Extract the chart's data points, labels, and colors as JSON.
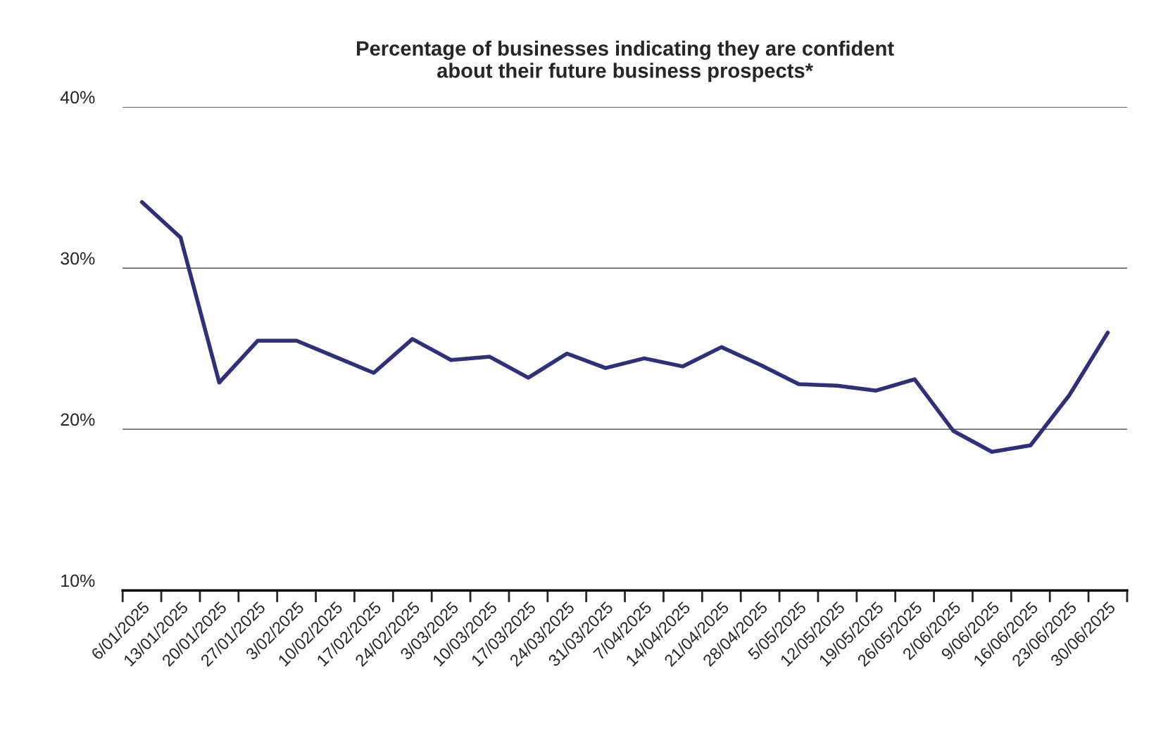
{
  "chart_data": {
    "type": "line",
    "title": "Percentage of businesses indicating they are confident\nabout their future business prospects*",
    "categories": [
      "6/01/2025",
      "13/01/2025",
      "20/01/2025",
      "27/01/2025",
      "3/02/2025",
      "10/02/2025",
      "17/02/2025",
      "24/02/2025",
      "3/03/2025",
      "10/03/2025",
      "17/03/2025",
      "24/03/2025",
      "31/03/2025",
      "7/04/2025",
      "14/04/2025",
      "21/04/2025",
      "28/04/2025",
      "5/05/2025",
      "12/05/2025",
      "19/05/2025",
      "26/05/2025",
      "2/06/2025",
      "9/06/2025",
      "16/06/2025",
      "23/06/2025",
      "30/06/2025"
    ],
    "series": [
      {
        "color": "#2e3179",
        "values": [
          34.1,
          31.9,
          22.9,
          25.5,
          25.5,
          24.5,
          23.5,
          25.6,
          24.3,
          24.5,
          23.2,
          24.7,
          23.8,
          24.4,
          23.9,
          25.1,
          24.0,
          22.8,
          22.7,
          22.4,
          23.1,
          19.9,
          18.6,
          19.0,
          22.1,
          26.0
        ]
      }
    ],
    "ylim": [
      10,
      40
    ],
    "yticks": [
      {
        "value": 10,
        "label": "10%"
      },
      {
        "value": 20,
        "label": "20%"
      },
      {
        "value": 30,
        "label": "30%"
      },
      {
        "value": 40,
        "label": "40%"
      }
    ],
    "grid": "y",
    "marker": "none",
    "line_style": "solid",
    "legend": false
  }
}
